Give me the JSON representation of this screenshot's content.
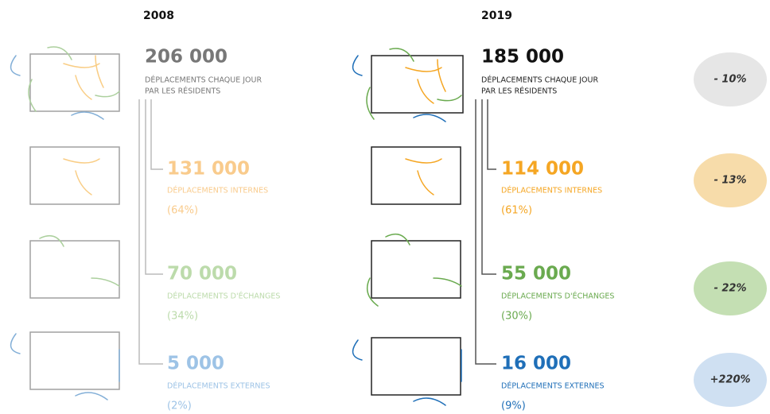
{
  "columns": [
    {
      "year": "2008",
      "total": {
        "value": "206 000",
        "label": [
          "DÉPLACEMENTS CHAQUE JOUR",
          "PAR LES RÉSIDENTS"
        ]
      },
      "items": [
        {
          "value": "131 000",
          "label": "DÉPLACEMENTS INTERNES",
          "share": "(64%)"
        },
        {
          "value": "70 000",
          "label": "DÉPLACEMENTS D'ÉCHANGES",
          "share": "(34%)"
        },
        {
          "value": "5 000",
          "label": "DÉPLACEMENTS EXTERNES",
          "share": "(2%)"
        }
      ]
    },
    {
      "year": "2019",
      "total": {
        "value": "185 000",
        "label": [
          "DÉPLACEMENTS CHAQUE JOUR",
          "PAR LES RÉSIDENTS"
        ]
      },
      "items": [
        {
          "value": "114 000",
          "label": "DÉPLACEMENTS INTERNES",
          "share": "(61%)"
        },
        {
          "value": "55 000",
          "label": "DÉPLACEMENTS D'ÉCHANGES",
          "share": "(30%)"
        },
        {
          "value": "16 000",
          "label": "DÉPLACEMENTS EXTERNES",
          "share": "(9%)"
        }
      ]
    }
  ],
  "changes": [
    "- 10%",
    "- 13%",
    "- 22%",
    "+220%"
  ]
}
